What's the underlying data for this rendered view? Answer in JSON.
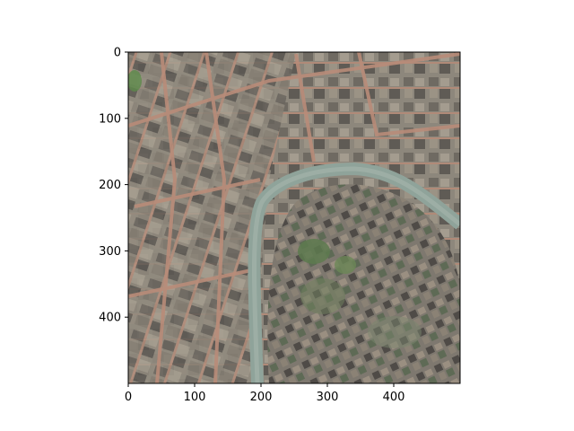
{
  "figure": {
    "image_description": "Aerial satellite view of a dense old-town urban area; a river curves from the top-right, loops around the central-right hill (wooded, with older buildings), and exits at the bottom center.",
    "x_ticks": [
      "0",
      "100",
      "200",
      "300",
      "400"
    ],
    "y_ticks": [
      "0",
      "100",
      "200",
      "300",
      "400"
    ],
    "x_range": [
      0,
      500
    ],
    "y_range": [
      0,
      500
    ],
    "y_inverted": true,
    "tick_values": [
      0,
      100,
      200,
      300,
      400
    ]
  }
}
